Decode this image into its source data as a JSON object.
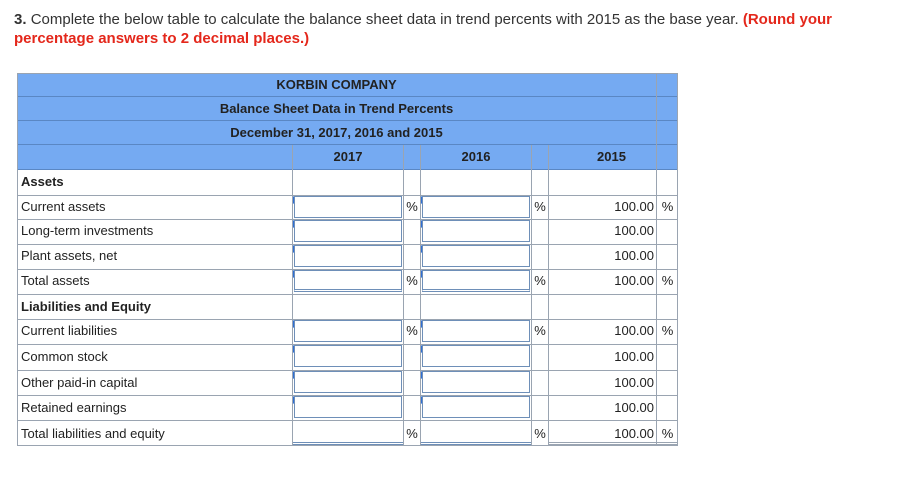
{
  "question": {
    "number": "3.",
    "text": "Complete the below table to calculate the balance sheet data in trend percents with 2015 as the base year.",
    "instruction": "(Round your percentage answers to 2 decimal places.)"
  },
  "table": {
    "company": "KORBIN COMPANY",
    "title": "Balance Sheet Data in Trend Percents",
    "date": "December 31, 2017, 2016 and 2015",
    "years": [
      "2017",
      "2016",
      "2015"
    ],
    "sections": {
      "assets": "Assets",
      "liabilities": "Liabilities and Equity"
    },
    "rows": [
      {
        "label": "Current assets",
        "base": "100.00",
        "pct": "%"
      },
      {
        "label": "Long-term investments",
        "base": "100.00",
        "pct": ""
      },
      {
        "label": "Plant assets, net",
        "base": "100.00",
        "pct": ""
      },
      {
        "label": "Total assets",
        "base": "100.00",
        "pct": "%"
      },
      {
        "label": "Current liabilities",
        "base": "100.00",
        "pct": "%"
      },
      {
        "label": "Common stock",
        "base": "100.00",
        "pct": ""
      },
      {
        "label": "Other paid-in capital",
        "base": "100.00",
        "pct": ""
      },
      {
        "label": "Retained earnings",
        "base": "100.00",
        "pct": ""
      },
      {
        "label": "Total liabilities and equity",
        "base": "100.00",
        "pct": "%"
      }
    ],
    "percent_sign": "%",
    "inputs": {
      "current_assets_2017": "",
      "current_assets_2016": "",
      "lt_investments_2017": "",
      "lt_investments_2016": "",
      "plant_assets_2017": "",
      "plant_assets_2016": "",
      "total_assets_2017": "",
      "total_assets_2016": "",
      "current_liabilities_2017": "",
      "current_liabilities_2016": "",
      "common_stock_2017": "",
      "common_stock_2016": "",
      "other_paid_in_2017": "",
      "other_paid_in_2016": "",
      "retained_earnings_2017": "",
      "retained_earnings_2016": ""
    }
  }
}
